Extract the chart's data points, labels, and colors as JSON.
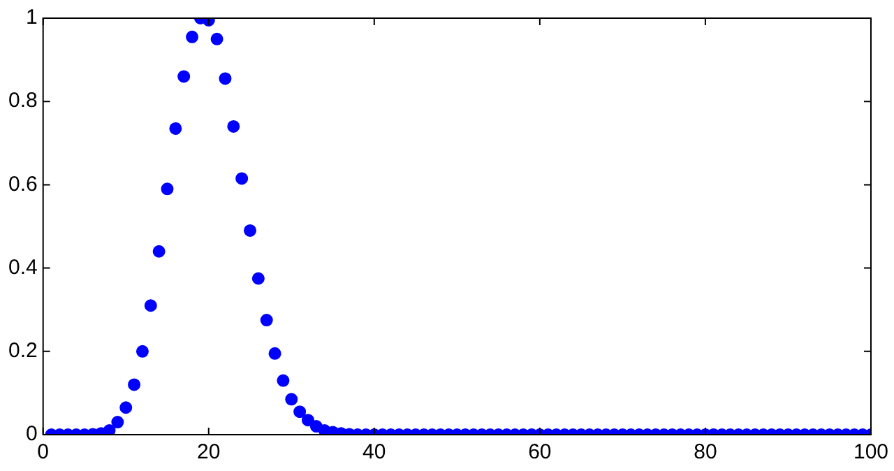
{
  "chart_data": {
    "type": "scatter",
    "marker": "circle",
    "grid": false,
    "legend": false,
    "xlim": [
      0,
      100
    ],
    "xticks": [
      0,
      20,
      40,
      60,
      80,
      100
    ],
    "ylim": [
      0,
      1
    ],
    "yticks": [
      0,
      0.2,
      0.4,
      0.6,
      0.8,
      1
    ],
    "x": [
      1,
      2,
      3,
      4,
      5,
      6,
      7,
      8,
      9,
      10,
      11,
      12,
      13,
      14,
      15,
      16,
      17,
      18,
      19,
      20,
      21,
      22,
      23,
      24,
      25,
      26,
      27,
      28,
      29,
      30,
      31,
      32,
      33,
      34,
      35,
      36,
      37,
      38,
      39,
      40,
      41,
      42,
      43,
      44,
      45,
      46,
      47,
      48,
      49,
      50,
      51,
      52,
      53,
      54,
      55,
      56,
      57,
      58,
      59,
      60,
      61,
      62,
      63,
      64,
      65,
      66,
      67,
      68,
      69,
      70,
      71,
      72,
      73,
      74,
      75,
      76,
      77,
      78,
      79,
      80,
      81,
      82,
      83,
      84,
      85,
      86,
      87,
      88,
      89,
      90,
      91,
      92,
      93,
      94,
      95,
      96,
      97,
      98,
      99,
      100
    ],
    "series": [
      {
        "color": "#0000ff",
        "values": [
          0,
          0,
          0,
          0,
          0,
          0.001,
          0.003,
          0.01,
          0.03,
          0.065,
          0.12,
          0.2,
          0.31,
          0.44,
          0.59,
          0.735,
          0.86,
          0.955,
          1,
          0.995,
          0.95,
          0.855,
          0.74,
          0.615,
          0.49,
          0.375,
          0.275,
          0.195,
          0.13,
          0.085,
          0.055,
          0.035,
          0.02,
          0.01,
          0.006,
          0.003,
          0.001,
          0,
          0,
          0,
          0,
          0,
          0,
          0,
          0,
          0,
          0,
          0,
          0,
          0,
          0,
          0,
          0,
          0,
          0,
          0,
          0,
          0,
          0,
          0,
          0,
          0,
          0,
          0,
          0,
          0,
          0,
          0,
          0,
          0,
          0,
          0,
          0,
          0,
          0,
          0,
          0,
          0,
          0,
          0,
          0,
          0,
          0,
          0,
          0,
          0,
          0,
          0,
          0,
          0,
          0,
          0,
          0,
          0,
          0,
          0,
          0,
          0,
          0,
          0
        ]
      }
    ]
  }
}
